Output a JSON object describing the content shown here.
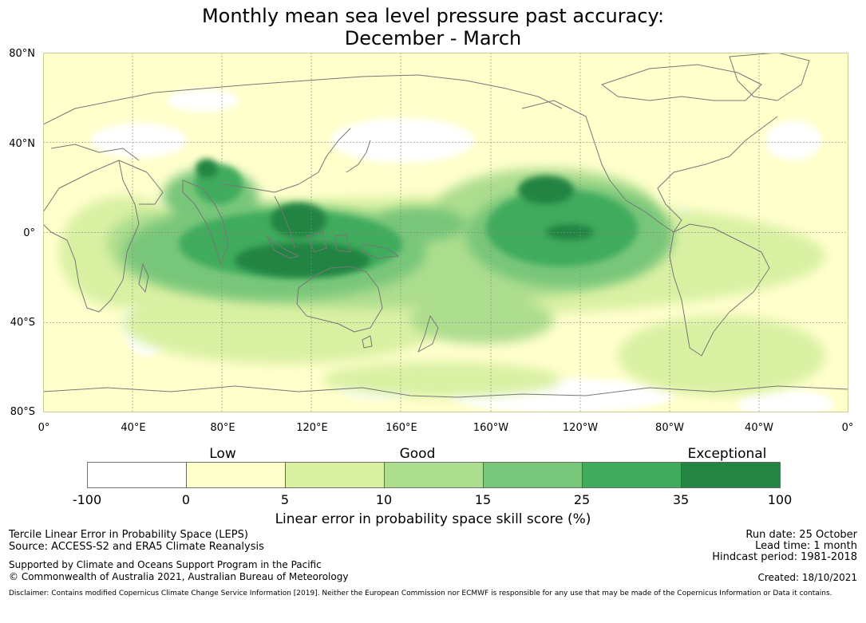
{
  "title_line1": "Monthly mean sea level pressure past accuracy:",
  "title_line2": "December - March",
  "lat_labels": [
    "80°N",
    "40°N",
    "0°",
    "40°S",
    "80°S"
  ],
  "lon_labels": [
    "0°",
    "40°E",
    "80°E",
    "120°E",
    "160°E",
    "160°W",
    "120°W",
    "80°W",
    "40°W",
    "0°"
  ],
  "colorbar": {
    "category_low": "Low",
    "category_good": "Good",
    "category_exceptional": "Exceptional",
    "ticks": [
      "-100",
      "0",
      "5",
      "10",
      "15",
      "25",
      "35",
      "100"
    ],
    "colors": [
      "#ffffff",
      "#ffffcc",
      "#d9f0a3",
      "#addd8e",
      "#78c679",
      "#41ab5d",
      "#238443"
    ],
    "label": "Linear error in probability space skill score (%)"
  },
  "footer": {
    "leps": "Tercile Linear Error in Probability Space (LEPS)",
    "source": "Source: ACCESS-S2 and ERA5 Climate Reanalysis",
    "supported": "Supported by Climate and Oceans Support Program in the Pacific",
    "copyright": "© Commonwealth of Australia 2021, Australian Bureau of Meteorology",
    "run_date": "Run date: 25 October",
    "lead_time": "Lead time: 1 month",
    "hindcast": "Hindcast period: 1981-2018",
    "created": "Created: 18/10/2021",
    "disclaimer": "Disclaimer: Contains modified Copernicus Climate Change Service Information [2019]. Neither the European Commission nor ECMWF is responsible for any use that may be made of the Copernicus Information or Data it contains."
  }
}
